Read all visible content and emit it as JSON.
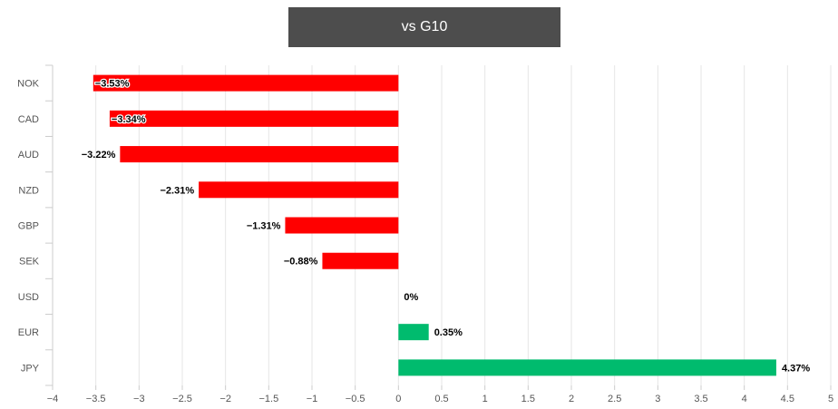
{
  "chart_data": {
    "type": "bar",
    "orientation": "horizontal",
    "title": "vs G10",
    "categories": [
      "NOK",
      "CAD",
      "AUD",
      "NZD",
      "GBP",
      "SEK",
      "USD",
      "EUR",
      "JPY"
    ],
    "values": [
      -3.53,
      -3.34,
      -3.22,
      -2.31,
      -1.31,
      -0.88,
      0,
      0.35,
      4.37
    ],
    "data_labels": [
      "−3.53%",
      "−3.34%",
      "−3.22%",
      "−2.31%",
      "−1.31%",
      "−0.88%",
      "0%",
      "0.35%",
      "4.37%"
    ],
    "xlim": [
      -4,
      5
    ],
    "x_ticks": [
      -4,
      -3.5,
      -3,
      -2.5,
      -2,
      -1.5,
      -1,
      -0.5,
      0,
      0.5,
      1,
      1.5,
      2,
      2.5,
      3,
      3.5,
      4,
      4.5,
      5
    ],
    "x_tick_labels": [
      "−4",
      "−3.5",
      "−3",
      "−2.5",
      "−2",
      "−1.5",
      "−1",
      "−0.5",
      "0",
      "0.5",
      "1",
      "1.5",
      "2",
      "2.5",
      "3",
      "3.5",
      "4",
      "4.5",
      "5"
    ],
    "xlabel": "",
    "ylabel": "",
    "grid": true,
    "colors": {
      "negative": "#ff0000",
      "positive": "#00bb6e",
      "grid": "#e6e6e6",
      "axis": "#cccccc"
    }
  }
}
